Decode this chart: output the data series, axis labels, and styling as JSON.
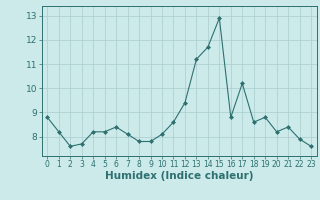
{
  "x": [
    0,
    1,
    2,
    3,
    4,
    5,
    6,
    7,
    8,
    9,
    10,
    11,
    12,
    13,
    14,
    15,
    16,
    17,
    18,
    19,
    20,
    21,
    22,
    23
  ],
  "y": [
    8.8,
    8.2,
    7.6,
    7.7,
    8.2,
    8.2,
    8.4,
    8.1,
    7.8,
    7.8,
    8.1,
    8.6,
    9.4,
    11.2,
    11.7,
    12.9,
    8.8,
    10.2,
    8.6,
    8.8,
    8.2,
    8.4,
    7.9,
    7.6
  ],
  "line_color": "#2e7070",
  "marker": "D",
  "markersize": 2.0,
  "linewidth": 0.8,
  "xlabel": "Humidex (Indice chaleur)",
  "xlim": [
    -0.5,
    23.5
  ],
  "ylim": [
    7.2,
    13.4
  ],
  "yticks": [
    8,
    9,
    10,
    11,
    12,
    13
  ],
  "xticks": [
    0,
    1,
    2,
    3,
    4,
    5,
    6,
    7,
    8,
    9,
    10,
    11,
    12,
    13,
    14,
    15,
    16,
    17,
    18,
    19,
    20,
    21,
    22,
    23
  ],
  "bg_color": "#cceaea",
  "grid_color": "#aacccc",
  "tick_color": "#2e7070",
  "label_color": "#2e7070",
  "xlabel_fontsize": 7.5,
  "ytick_fontsize": 6.5,
  "xtick_fontsize": 5.5
}
